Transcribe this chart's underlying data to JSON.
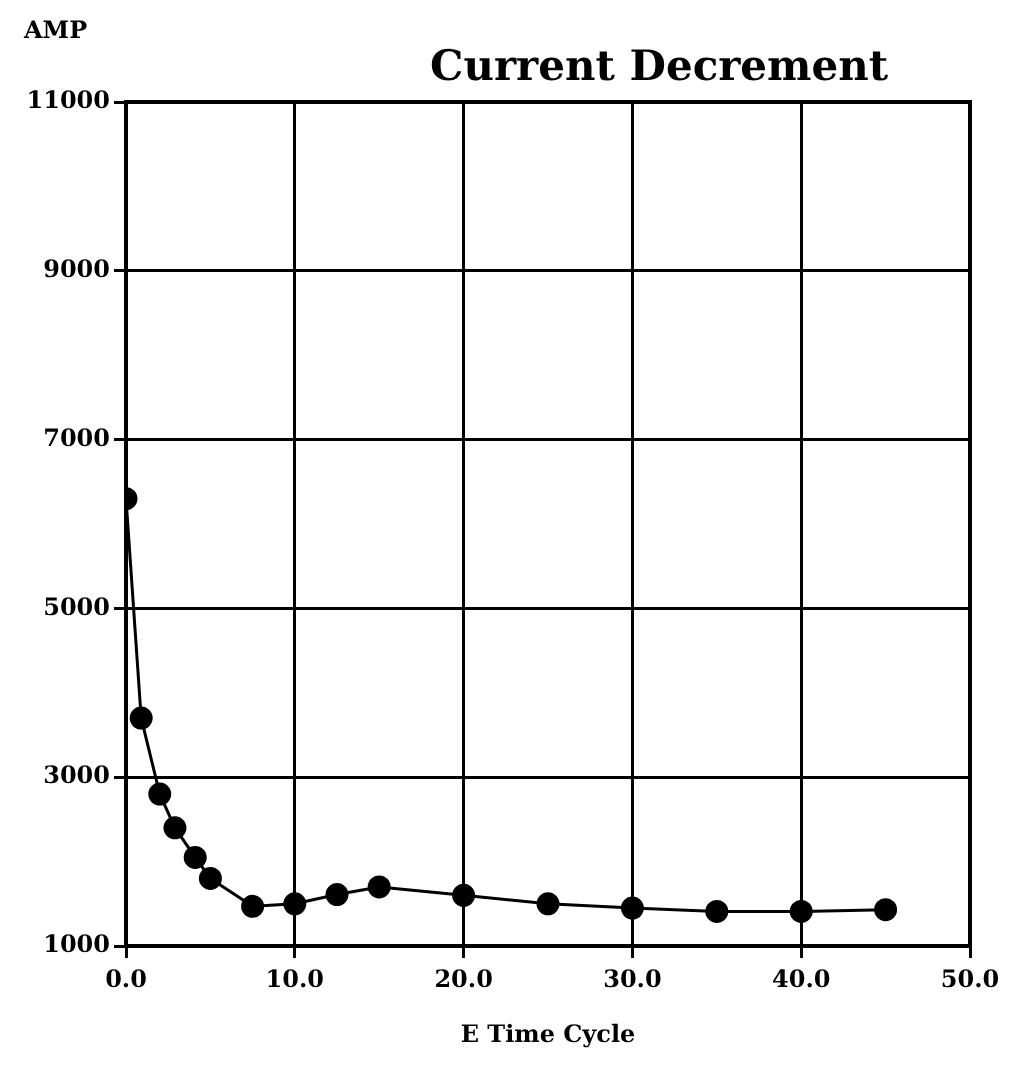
{
  "chart_data": {
    "type": "line",
    "title": "Current Decrement",
    "xlabel": "E Time Cycle",
    "ylabel": "AMP",
    "x": [
      0,
      0.9,
      2.0,
      2.9,
      4.1,
      5.0,
      7.5,
      10.0,
      12.5,
      15.0,
      20.0,
      25.0,
      30.0,
      35.0,
      40.0,
      45.0
    ],
    "series": [
      {
        "color": "#000000",
        "values": [
          6300,
          3700,
          2800,
          2400,
          2050,
          1800,
          1470,
          1500,
          1610,
          1700,
          1600,
          1500,
          1450,
          1410,
          1410,
          1430
        ]
      }
    ],
    "xlim": [
      0,
      50
    ],
    "xticks": [
      {
        "value": 0,
        "label": "0.0"
      },
      {
        "value": 10,
        "label": "10.0"
      },
      {
        "value": 20,
        "label": "20.0"
      },
      {
        "value": 30,
        "label": "30.0"
      },
      {
        "value": 40,
        "label": "40.0"
      },
      {
        "value": 50,
        "label": "50.0"
      }
    ],
    "ylim": [
      1000,
      11000
    ],
    "yticks": [
      1000,
      3000,
      5000,
      7000,
      9000,
      11000
    ],
    "grid": true,
    "legend": false,
    "marker": "circle",
    "line_style": "solid"
  }
}
